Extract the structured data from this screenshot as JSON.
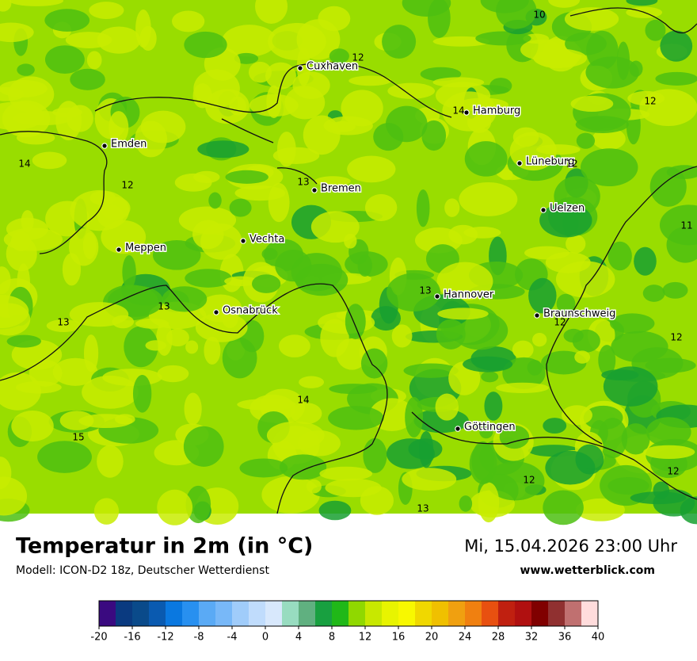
{
  "map": {
    "cities": [
      "Cuxhaven",
      "Hamburg",
      "Emden",
      "Lüneburg",
      "Bremen",
      "Uelzen",
      "Vechta",
      "Meppen",
      "Hannover",
      "Osnabrück",
      "Braunschweig",
      "Göttingen"
    ],
    "contour_labels": [
      10,
      12,
      12,
      14,
      12,
      14,
      12,
      13,
      11,
      13,
      13,
      13,
      12,
      12,
      14,
      15,
      12,
      12,
      13
    ]
  },
  "footer": {
    "title": "Temperatur in 2m (in °C)",
    "subtitle": "Modell: ICON-D2 18z, Deutscher Wetterdienst",
    "datetime": "Mi, 15.04.2026 23:00 Uhr",
    "website": "www.wetterblick.com"
  },
  "legend": {
    "colors": [
      "#3a0a80",
      "#0a3a80",
      "#0a4a8a",
      "#0a5ab0",
      "#0a78e0",
      "#2890f0",
      "#5aaaf5",
      "#78b8f8",
      "#a0ccfa",
      "#c0dcfc",
      "#d8e8fc",
      "#98dcc0",
      "#60b080",
      "#18a040",
      "#20b818",
      "#90d800",
      "#c8e800",
      "#e8f400",
      "#f8f800",
      "#f0d800",
      "#f0c000",
      "#f0a010",
      "#f08010",
      "#e85010",
      "#c02010",
      "#b01010",
      "#800000",
      "#903030",
      "#c07070",
      "#ffdcdc"
    ],
    "ticks": [
      -20,
      -16,
      -12,
      -8,
      -4,
      0,
      4,
      8,
      12,
      16,
      20,
      24,
      28,
      32,
      36,
      40
    ]
  }
}
